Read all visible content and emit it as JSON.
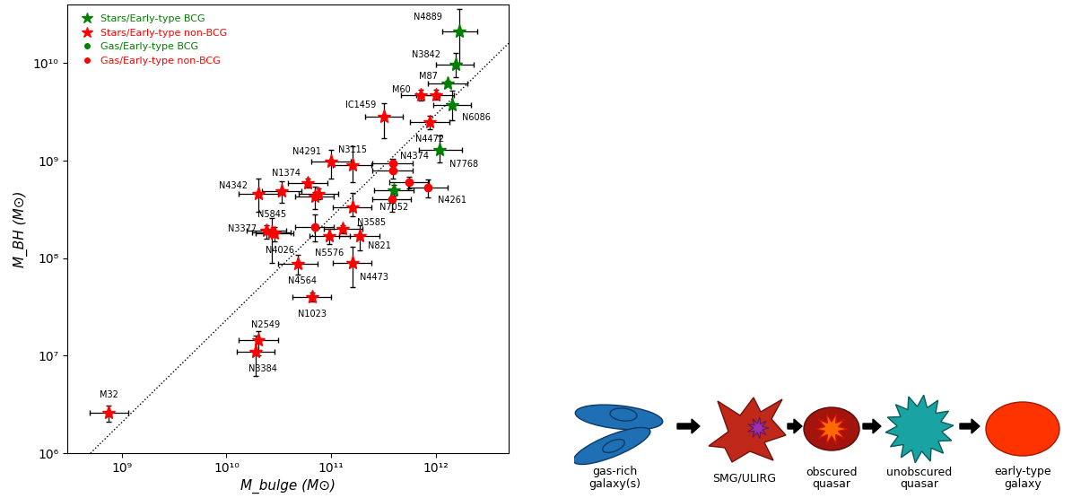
{
  "chart_data": {
    "type": "scatter",
    "x_label": "M_bulge (M⊙)",
    "y_label": "M_BH (M⊙)",
    "log": true,
    "legend": "upper left",
    "xlim": [
      300000000.0,
      5000000000000.0
    ],
    "ylim": [
      1000000.0,
      40000000000.0
    ],
    "xticks": [
      {
        "value": 1000000000.0,
        "label": "10⁹"
      },
      {
        "value": 10000000000.0,
        "label": "10¹⁰"
      },
      {
        "value": 100000000000.0,
        "label": "10¹¹"
      },
      {
        "value": 1000000000000.0,
        "label": "10¹²"
      }
    ],
    "yticks": [
      {
        "value": 1000000.0,
        "label": "10⁶"
      },
      {
        "value": 10000000.0,
        "label": "10⁷"
      },
      {
        "value": 100000000.0,
        "label": "10⁸"
      },
      {
        "value": 1000000000.0,
        "label": "10⁹"
      },
      {
        "value": 10000000000.0,
        "label": "10¹⁰"
      }
    ],
    "lines": [
      {
        "x": [
          500000000.0,
          5000000000000.0
        ],
        "y": [
          1000000.0,
          16000000000.0
        ],
        "line_style": "dotted",
        "color": "#000000"
      }
    ],
    "series": [
      {
        "name": "Stars/Early-type BCG",
        "color": "#008000",
        "marker": "star",
        "points": [
          {
            "label": "N4889",
            "x": 1700000000000.0,
            "y": 21000000000.0,
            "x_range": [
              1150000000000.0,
              2500000000000.0
            ],
            "y_range": [
              10000000000.0,
              36000000000.0
            ]
          },
          {
            "label": "N3842",
            "x": 1550000000000.0,
            "y": 9700000000.0,
            "x_range": [
              1000000000000.0,
              2300000000000.0
            ],
            "y_range": [
              7200000000.0,
              12700000000.0
            ]
          },
          {
            "label": "M87",
            "x": 1300000000000.0,
            "y": 6200000000.0,
            "x_range": [
              850000000000.0,
              2000000000000.0
            ],
            "y_range": [
              5800000000.0,
              6600000000.0
            ]
          },
          {
            "label": "N6086",
            "x": 1450000000000.0,
            "y": 3700000000.0,
            "x_range": [
              950000000000.0,
              2200000000000.0
            ],
            "y_range": [
              2600000000.0,
              5200000000.0
            ]
          },
          {
            "label": "N7768",
            "x": 1100000000000.0,
            "y": 1300000000.0,
            "x_range": [
              700000000000.0,
              1800000000000.0
            ],
            "y_range": [
              950000000.0,
              1800000000.0
            ]
          },
          {
            "label": "N7052",
            "x": 400000000000.0,
            "y": 500000000.0,
            "x_range": [
              260000000000.0,
              620000000000.0
            ],
            "y_range": [
              440000000.0,
              570000000.0
            ]
          }
        ]
      },
      {
        "name": "Stars/Early-type non-BCG",
        "color": "#ff0000",
        "marker": "star",
        "points": [
          {
            "label": "M60",
            "x": 720000000000.0,
            "y": 4700000000.0,
            "x_range": [
              470000000000.0,
              1100000000000.0
            ],
            "y_range": [
              4100000000.0,
              5300000000.0
            ]
          },
          {
            "label": null,
            "x": 1000000000000.0,
            "y": 4700000000.0,
            "x_range": [
              650000000000.0,
              1500000000000.0
            ],
            "y_range": [
              4200000000.0,
              5300000000.0
            ]
          },
          {
            "label": "N4472",
            "x": 880000000000.0,
            "y": 2500000000.0,
            "x_range": [
              570000000000.0,
              1350000000000.0
            ],
            "y_range": [
              2100000000.0,
              2900000000.0
            ]
          },
          {
            "label": "IC1459",
            "x": 320000000000.0,
            "y": 2800000000.0,
            "x_range": [
              210000000000.0,
              490000000000.0
            ],
            "y_range": [
              1700000000.0,
              3900000000.0
            ]
          },
          {
            "label": "N3115",
            "x": 160000000000.0,
            "y": 900000000.0,
            "x_range": [
              105000000000.0,
              245000000000.0
            ],
            "y_range": [
              600000000.0,
              1400000000.0
            ]
          },
          {
            "label": "N4291",
            "x": 100000000000.0,
            "y": 980000000.0,
            "x_range": [
              65000000000.0,
              155000000000.0
            ],
            "y_range": [
              660000000.0,
              1300000000.0
            ]
          },
          {
            "label": "N1374",
            "x": 60000000000.0,
            "y": 590000000.0,
            "x_range": [
              39000000000.0,
              92000000000.0
            ],
            "y_range": [
              530000000.0,
              650000000.0
            ]
          },
          {
            "label": "N4342",
            "x": 20000000000.0,
            "y": 460000000.0,
            "x_range": [
              13000000000.0,
              31000000000.0
            ],
            "y_range": [
              300000000.0,
              660000000.0
            ]
          },
          {
            "label": null,
            "x": 34000000000.0,
            "y": 490000000.0,
            "x_range": [
              22000000000.0,
              52000000000.0
            ],
            "y_range": [
              370000000.0,
              610000000.0
            ]
          },
          {
            "label": null,
            "x": 70000000000.0,
            "y": 430000000.0,
            "x_range": [
              45000000000.0,
              107000000000.0
            ],
            "y_range": [
              320000000.0,
              540000000.0
            ]
          },
          {
            "label": null,
            "x": 76000000000.0,
            "y": 460000000.0,
            "x_range": [
              49000000000.0,
              116000000000.0
            ],
            "y_range": [
              400000000.0,
              520000000.0
            ]
          },
          {
            "label": "N3585",
            "x": 160000000000.0,
            "y": 330000000.0,
            "x_range": [
              105000000000.0,
              245000000000.0
            ],
            "y_range": [
              270000000.0,
              470000000.0
            ]
          },
          {
            "label": "N3377",
            "x": 24000000000.0,
            "y": 190000000.0,
            "x_range": [
              15500000000.0,
              37000000000.0
            ],
            "y_range": [
              160000000.0,
              220000000.0
            ]
          },
          {
            "label": "N5845",
            "x": 27000000000.0,
            "y": 185000000.0,
            "x_range": [
              17500000000.0,
              41000000000.0
            ],
            "y_range": [
              90000000.0,
              260000000.0
            ]
          },
          {
            "label": "N4026",
            "x": 29000000000.0,
            "y": 180000000.0,
            "x_range": [
              19000000000.0,
              44000000000.0
            ],
            "y_range": [
              150000000.0,
              210000000.0
            ]
          },
          {
            "label": null,
            "x": 130000000000.0,
            "y": 200000000.0,
            "x_range": [
              85000000000.0,
              200000000000.0
            ],
            "y_range": [
              180000000.0,
              220000000.0
            ]
          },
          {
            "label": "N5576",
            "x": 96000000000.0,
            "y": 170000000.0,
            "x_range": [
              62000000000.0,
              150000000000.0
            ],
            "y_range": [
              140000000.0,
              200000000.0
            ]
          },
          {
            "label": "N821",
            "x": 190000000000.0,
            "y": 170000000.0,
            "x_range": [
              120000000000.0,
              290000000000.0
            ],
            "y_range": [
              120000000.0,
              220000000.0
            ]
          },
          {
            "label": "N4564",
            "x": 48000000000.0,
            "y": 88000000.0,
            "x_range": [
              31000000000.0,
              74000000000.0
            ],
            "y_range": [
              68000000.0,
              108000000.0
            ]
          },
          {
            "label": "N4473",
            "x": 160000000000.0,
            "y": 90000000.0,
            "x_range": [
              105000000000.0,
              245000000000.0
            ],
            "y_range": [
              50000000.0,
              130000000.0
            ]
          },
          {
            "label": "N1023",
            "x": 66000000000.0,
            "y": 40000000.0,
            "x_range": [
              43000000000.0,
              100000000000.0
            ],
            "y_range": [
              36000000.0,
              44000000.0
            ]
          },
          {
            "label": "N2549",
            "x": 20000000000.0,
            "y": 14500000.0,
            "x_range": [
              13000000000.0,
              31000000000.0
            ],
            "y_range": [
              10000000.0,
              18000000.0
            ]
          },
          {
            "label": "N3384",
            "x": 19000000000.0,
            "y": 11000000.0,
            "x_range": [
              12500000000.0,
              29000000000.0
            ],
            "y_range": [
              6200000.0,
              16000000.0
            ]
          },
          {
            "label": "M32",
            "x": 750000000.0,
            "y": 2600000.0,
            "x_range": [
              490000000.0,
              1150000000.0
            ],
            "y_range": [
              2100000.0,
              3100000.0
            ]
          }
        ]
      },
      {
        "name": "Gas/Early-type BCG",
        "color": "#008000",
        "marker": "circle",
        "points": []
      },
      {
        "name": "Gas/Early-type non-BCG",
        "color": "#ff0000",
        "marker": "circle",
        "points": [
          {
            "label": "N4374",
            "x": 390000000000.0,
            "y": 930000000.0,
            "x_range": [
              250000000000.0,
              600000000000.0
            ],
            "y_range": [
              820000000.0,
              1050000000.0
            ]
          },
          {
            "label": null,
            "x": 390000000000.0,
            "y": 800000000.0,
            "x_range": [
              250000000000.0,
              600000000000.0
            ],
            "y_range": [
              650000000.0,
              950000000.0
            ]
          },
          {
            "label": "N4261",
            "x": 840000000000.0,
            "y": 530000000.0,
            "x_range": [
              550000000000.0,
              1300000000000.0
            ],
            "y_range": [
              420000000.0,
              640000000.0
            ]
          },
          {
            "label": null,
            "x": 560000000000.0,
            "y": 600000000.0,
            "x_range": [
              360000000000.0,
              860000000000.0
            ],
            "y_range": [
              520000000.0,
              680000000.0
            ]
          },
          {
            "label": null,
            "x": 380000000000.0,
            "y": 400000000.0,
            "x_range": [
              250000000000.0,
              580000000000.0
            ],
            "y_range": [
              300000000.0,
              500000000.0
            ]
          },
          {
            "label": null,
            "x": 70000000000.0,
            "y": 210000000.0,
            "x_range": [
              45000000000.0,
              107000000000.0
            ],
            "y_range": [
              150000000.0,
              280000000.0
            ]
          }
        ]
      }
    ]
  },
  "diagram": {
    "nodes": [
      {
        "label": "gas-rich\ngalaxy(s)"
      },
      {
        "label": "SMG/ULIRG"
      },
      {
        "label": "obscured\nquasar"
      },
      {
        "label": "unobscured\nquasar"
      },
      {
        "label": "early-type\ngalaxy"
      }
    ]
  }
}
